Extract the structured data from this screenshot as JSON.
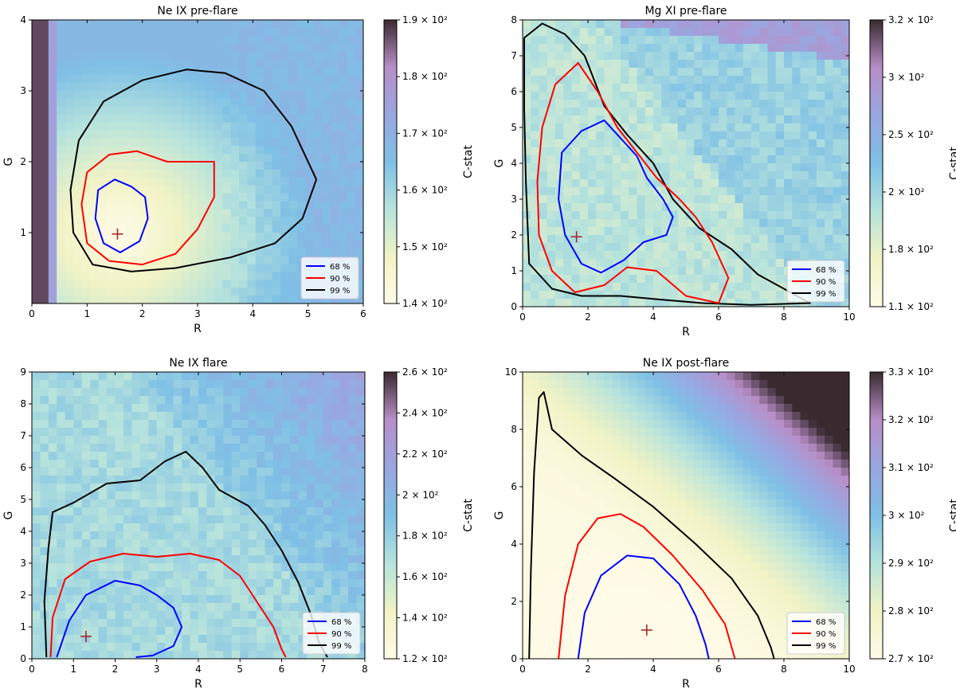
{
  "colorbar_label": "C-stat",
  "legend": [
    "68 %",
    "90 %",
    "99 %"
  ],
  "contour_colors": {
    "68 %": "#0000ff",
    "90 %": "#ff0000",
    "99 %": "#000000"
  },
  "marker": "+",
  "marker_color": "#a52a2a",
  "colormap": [
    "#fffbe8",
    "#f1f3c5",
    "#b6e3dc",
    "#7fc0e6",
    "#9aa6e0",
    "#b88fc8",
    "#3a2a30"
  ],
  "chart_data": [
    {
      "type": "heatmap",
      "title": "Ne IX pre-flare",
      "xlabel": "R",
      "ylabel": "G",
      "xlim": [
        0,
        6
      ],
      "ylim": [
        0,
        4
      ],
      "xticks": [
        "0",
        "1",
        "2",
        "3",
        "4",
        "5",
        "6"
      ],
      "yticks": [
        "1",
        "2",
        "3",
        "4"
      ],
      "colorbar": {
        "min": 140,
        "max": 190,
        "ticks": [
          "1.4 × 10²",
          "1.5 × 10²",
          "1.6 × 10²",
          "1.7 × 10²",
          "1.8 × 10²",
          "1.9 × 10²"
        ]
      },
      "best_fit": {
        "R": 1.55,
        "G": 0.98
      },
      "legend_position": "bottom-right",
      "contours": {
        "68 %": [
          [
            1.2,
            1.6
          ],
          [
            1.5,
            1.75
          ],
          [
            1.8,
            1.65
          ],
          [
            2.05,
            1.5
          ],
          [
            2.1,
            1.2
          ],
          [
            1.95,
            0.88
          ],
          [
            1.6,
            0.72
          ],
          [
            1.3,
            0.85
          ],
          [
            1.15,
            1.2
          ]
        ],
        "90 %": [
          [
            0.9,
            1.4
          ],
          [
            1.0,
            1.85
          ],
          [
            1.4,
            2.1
          ],
          [
            1.9,
            2.15
          ],
          [
            2.45,
            2.0
          ],
          [
            3.3,
            2.0
          ],
          [
            3.3,
            1.5
          ],
          [
            3.0,
            1.05
          ],
          [
            2.6,
            0.7
          ],
          [
            2.0,
            0.55
          ],
          [
            1.4,
            0.6
          ],
          [
            1.0,
            0.85
          ]
        ],
        "99 %": [
          [
            0.85,
            2.3
          ],
          [
            1.3,
            2.85
          ],
          [
            2.0,
            3.15
          ],
          [
            2.8,
            3.3
          ],
          [
            3.5,
            3.25
          ],
          [
            4.2,
            3.0
          ],
          [
            4.7,
            2.5
          ],
          [
            5.15,
            1.75
          ],
          [
            4.9,
            1.2
          ],
          [
            4.4,
            0.85
          ],
          [
            3.6,
            0.65
          ],
          [
            2.6,
            0.5
          ],
          [
            1.8,
            0.45
          ],
          [
            1.1,
            0.55
          ],
          [
            0.75,
            1.0
          ],
          [
            0.7,
            1.6
          ]
        ]
      }
    },
    {
      "type": "heatmap",
      "title": "Mg XI pre-flare",
      "xlabel": "R",
      "ylabel": "G",
      "xlim": [
        0,
        10
      ],
      "ylim": [
        0,
        8
      ],
      "xticks": [
        "0",
        "2",
        "4",
        "6",
        "8",
        "10"
      ],
      "yticks": [
        "0",
        "1",
        "2",
        "3",
        "4",
        "5",
        "6",
        "7",
        "8"
      ],
      "colorbar": {
        "min": 110,
        "max": 320,
        "ticks": [
          "1.1 × 10²",
          "1.8 × 10²",
          "2 × 10²",
          "2.5 × 10²",
          "3 × 10²",
          "3.2 × 10²"
        ]
      },
      "best_fit": {
        "R": 1.65,
        "G": 1.95
      },
      "legend_position": "bottom-right",
      "contours": {
        "68 %": [
          [
            1.2,
            4.3
          ],
          [
            1.8,
            4.9
          ],
          [
            2.5,
            5.2
          ],
          [
            3.0,
            4.7
          ],
          [
            3.5,
            4.2
          ],
          [
            3.8,
            3.6
          ],
          [
            4.3,
            3.0
          ],
          [
            4.6,
            2.5
          ],
          [
            4.4,
            2.0
          ],
          [
            3.7,
            1.8
          ],
          [
            3.1,
            1.3
          ],
          [
            2.4,
            0.95
          ],
          [
            1.8,
            1.2
          ],
          [
            1.3,
            2.0
          ],
          [
            1.1,
            3.0
          ]
        ],
        "90 %": [
          [
            0.6,
            5.0
          ],
          [
            1.0,
            6.2
          ],
          [
            1.7,
            6.8
          ],
          [
            2.3,
            6.0
          ],
          [
            2.9,
            5.0
          ],
          [
            3.5,
            4.3
          ],
          [
            4.1,
            3.6
          ],
          [
            4.8,
            3.0
          ],
          [
            5.3,
            2.5
          ],
          [
            5.8,
            1.8
          ],
          [
            6.3,
            0.8
          ],
          [
            6.0,
            0.1
          ],
          [
            5.0,
            0.3
          ],
          [
            4.1,
            1.0
          ],
          [
            3.2,
            1.1
          ],
          [
            2.5,
            0.6
          ],
          [
            1.6,
            0.4
          ],
          [
            0.9,
            1.0
          ],
          [
            0.5,
            2.0
          ],
          [
            0.45,
            3.5
          ]
        ],
        "99 %": [
          [
            0.05,
            7.5
          ],
          [
            0.6,
            7.9
          ],
          [
            1.3,
            7.6
          ],
          [
            1.9,
            7.0
          ],
          [
            2.5,
            5.6
          ],
          [
            3.2,
            4.8
          ],
          [
            4.0,
            4.0
          ],
          [
            4.6,
            3.0
          ],
          [
            5.4,
            2.2
          ],
          [
            6.4,
            1.6
          ],
          [
            7.2,
            0.9
          ],
          [
            8.0,
            0.5
          ],
          [
            8.8,
            0.1
          ],
          [
            7.0,
            0.05
          ],
          [
            5.5,
            0.1
          ],
          [
            4.2,
            0.2
          ],
          [
            3.0,
            0.3
          ],
          [
            1.8,
            0.3
          ],
          [
            0.9,
            0.5
          ],
          [
            0.2,
            1.2
          ],
          [
            0.1,
            3.5
          ],
          [
            0.05,
            5.5
          ]
        ]
      }
    },
    {
      "type": "heatmap",
      "title": "Ne IX flare",
      "xlabel": "R",
      "ylabel": "G",
      "xlim": [
        0,
        8
      ],
      "ylim": [
        0,
        9
      ],
      "xticks": [
        "0",
        "1",
        "2",
        "3",
        "4",
        "5",
        "6",
        "7",
        "8"
      ],
      "yticks": [
        "0",
        "1",
        "2",
        "3",
        "4",
        "5",
        "6",
        "7",
        "8",
        "9"
      ],
      "colorbar": {
        "min": 120,
        "max": 260,
        "ticks": [
          "1.2 × 10²",
          "1.4 × 10²",
          "1.6 × 10²",
          "1.8 × 10²",
          "2 × 10²",
          "2.2 × 10²",
          "2.4 × 10²",
          "2.6 × 10²"
        ]
      },
      "best_fit": {
        "R": 1.3,
        "G": 0.7
      },
      "legend_position": "bottom-right",
      "contours": {
        "68 %": [
          [
            0.6,
            0.05
          ],
          [
            0.9,
            1.2
          ],
          [
            1.3,
            2.0
          ],
          [
            2.0,
            2.45
          ],
          [
            2.6,
            2.3
          ],
          [
            3.0,
            2.0
          ],
          [
            3.4,
            1.6
          ],
          [
            3.6,
            1.0
          ],
          [
            3.4,
            0.4
          ],
          [
            2.9,
            0.1
          ],
          [
            2.5,
            0.05
          ]
        ],
        "90 %": [
          [
            0.45,
            0.05
          ],
          [
            0.5,
            1.3
          ],
          [
            0.8,
            2.5
          ],
          [
            1.4,
            3.05
          ],
          [
            2.2,
            3.3
          ],
          [
            3.0,
            3.2
          ],
          [
            3.8,
            3.3
          ],
          [
            4.5,
            3.1
          ],
          [
            5.0,
            2.6
          ],
          [
            5.4,
            1.8
          ],
          [
            5.8,
            1.0
          ],
          [
            6.0,
            0.3
          ],
          [
            6.1,
            0.05
          ]
        ],
        "99 %": [
          [
            0.35,
            0.05
          ],
          [
            0.3,
            1.8
          ],
          [
            0.4,
            3.5
          ],
          [
            0.5,
            4.6
          ],
          [
            1.0,
            4.9
          ],
          [
            1.8,
            5.5
          ],
          [
            2.6,
            5.6
          ],
          [
            3.2,
            6.2
          ],
          [
            3.7,
            6.5
          ],
          [
            4.1,
            6.0
          ],
          [
            4.5,
            5.3
          ],
          [
            5.2,
            4.8
          ],
          [
            5.6,
            4.2
          ],
          [
            6.0,
            3.4
          ],
          [
            6.4,
            2.4
          ],
          [
            6.7,
            1.4
          ],
          [
            6.9,
            0.5
          ],
          [
            7.1,
            0.05
          ]
        ]
      }
    },
    {
      "type": "heatmap",
      "title": "Ne IX post-flare",
      "xlabel": "R",
      "ylabel": "G",
      "xlim": [
        0,
        10
      ],
      "ylim": [
        0,
        10
      ],
      "xticks": [
        "0",
        "2",
        "4",
        "6",
        "8",
        "10"
      ],
      "yticks": [
        "0",
        "2",
        "4",
        "6",
        "8",
        "10"
      ],
      "colorbar": {
        "min": 270,
        "max": 330,
        "ticks": [
          "2.7 × 10²",
          "2.8 × 10²",
          "2.9 × 10²",
          "3 × 10²",
          "3.1 × 10²",
          "3.2 × 10²",
          "3.3 × 10²"
        ]
      },
      "best_fit": {
        "R": 3.8,
        "G": 1.0
      },
      "legend_position": "bottom-right",
      "contours": {
        "68 %": [
          [
            1.7,
            0.0
          ],
          [
            1.9,
            1.6
          ],
          [
            2.4,
            2.9
          ],
          [
            3.2,
            3.6
          ],
          [
            4.0,
            3.5
          ],
          [
            4.8,
            2.6
          ],
          [
            5.3,
            1.5
          ],
          [
            5.6,
            0.5
          ],
          [
            5.7,
            0.0
          ]
        ],
        "90 %": [
          [
            1.1,
            0.0
          ],
          [
            1.3,
            2.2
          ],
          [
            1.7,
            4.0
          ],
          [
            2.3,
            4.9
          ],
          [
            3.0,
            5.05
          ],
          [
            3.7,
            4.6
          ],
          [
            4.6,
            3.6
          ],
          [
            5.5,
            2.4
          ],
          [
            6.2,
            1.2
          ],
          [
            6.5,
            0.0
          ]
        ],
        "99 %": [
          [
            0.2,
            0.0
          ],
          [
            0.25,
            3.0
          ],
          [
            0.35,
            6.5
          ],
          [
            0.5,
            9.1
          ],
          [
            0.65,
            9.3
          ],
          [
            0.9,
            8.0
          ],
          [
            1.8,
            7.1
          ],
          [
            2.8,
            6.3
          ],
          [
            4.0,
            5.3
          ],
          [
            5.3,
            4.0
          ],
          [
            6.4,
            2.8
          ],
          [
            7.2,
            1.5
          ],
          [
            7.6,
            0.4
          ],
          [
            7.7,
            0.0
          ]
        ]
      }
    }
  ]
}
